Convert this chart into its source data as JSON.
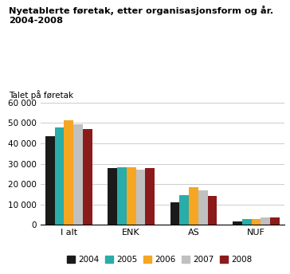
{
  "title": "Nyetablerte føretak, etter organisasjonsform og år.\n2004-2008",
  "ylabel": "Talet på føretak",
  "categories": [
    "I alt",
    "ENK",
    "AS",
    "NUF"
  ],
  "years": [
    "2004",
    "2005",
    "2006",
    "2007",
    "2008"
  ],
  "colors": [
    "#1a1a1a",
    "#2aaca8",
    "#f5a623",
    "#c0c0c0",
    "#8b1a1a"
  ],
  "values": {
    "I alt": [
      43500,
      48000,
      51500,
      49500,
      47000
    ],
    "ENK": [
      28000,
      28200,
      28400,
      27200,
      27900
    ],
    "AS": [
      11000,
      14500,
      18500,
      16800,
      14000
    ],
    "NUF": [
      1700,
      2600,
      2600,
      3700,
      3500
    ]
  },
  "ylim": [
    0,
    62000
  ],
  "yticks": [
    0,
    10000,
    20000,
    30000,
    40000,
    50000,
    60000
  ],
  "ytick_labels": [
    "0",
    "10 000",
    "20 000",
    "30 000",
    "40 000",
    "50 000",
    "60 000"
  ],
  "background_color": "#ffffff",
  "grid_color": "#cccccc"
}
